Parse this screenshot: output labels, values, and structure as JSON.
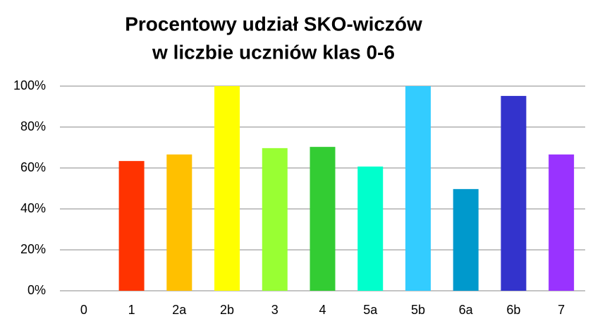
{
  "chart_data": {
    "type": "bar",
    "title": [
      "Procentowy udział SKO-wiczów",
      "w liczbie uczniów klas 0-6"
    ],
    "categories": [
      "0",
      "1",
      "2a",
      "2b",
      "3",
      "4",
      "5a",
      "5b",
      "6a",
      "6b",
      "7"
    ],
    "values": [
      0,
      63.4,
      66.6,
      100,
      69.7,
      70.3,
      60.7,
      100,
      49.7,
      95.2,
      66.6
    ],
    "colors": [
      null,
      "#ff3300",
      "#ffc000",
      "#ffff00",
      "#99ff33",
      "#33cc33",
      "#00ffcc",
      "#33ccff",
      "#0099cc",
      "#3333cc",
      "#9933ff"
    ],
    "ylim": [
      0,
      100
    ],
    "yticks": [
      {
        "value": 0,
        "label": "0%"
      },
      {
        "value": 20,
        "label": "20%"
      },
      {
        "value": 40,
        "label": "40%"
      },
      {
        "value": 60,
        "label": "60%"
      },
      {
        "value": 80,
        "label": "80%"
      },
      {
        "value": 100,
        "label": "100%"
      }
    ],
    "grid": true
  }
}
